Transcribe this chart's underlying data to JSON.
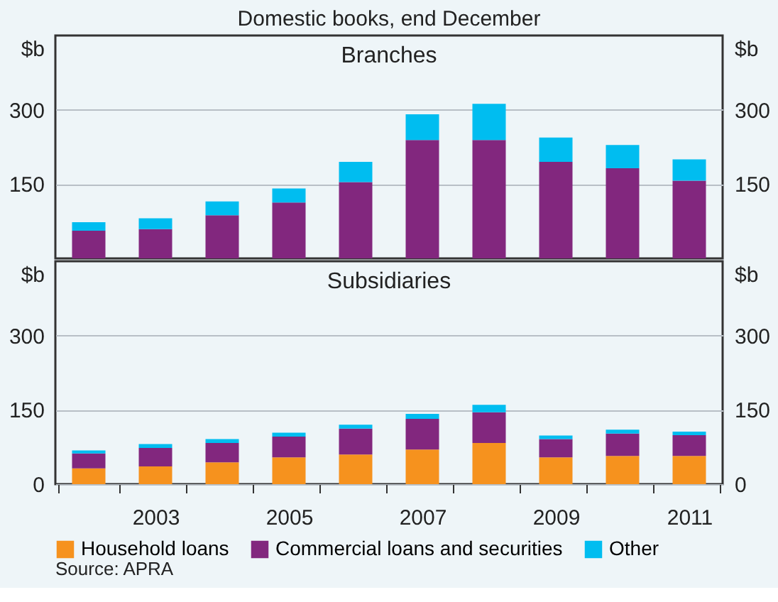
{
  "chart_data": [
    {
      "type": "bar",
      "stacked": true,
      "title": "Branches",
      "annotations": [
        "Domestic books, end December"
      ],
      "ylabel": "$b",
      "y2label": "$b",
      "categories": [
        null,
        "2003",
        null,
        "2005",
        null,
        "2007",
        null,
        "2009",
        null,
        "2011"
      ],
      "series": [
        {
          "color": "#82277e",
          "values": [
            56,
            59,
            87,
            113,
            154,
            239,
            239,
            195,
            182,
            157
          ]
        },
        {
          "color": "#00bdf0",
          "values": [
            17,
            22,
            28,
            28,
            41,
            52,
            73,
            49,
            47,
            43
          ]
        }
      ],
      "ylim": [
        0,
        450
      ],
      "yticks": [
        150,
        300
      ],
      "y2lim": [
        0,
        450
      ],
      "y2ticks": [
        150,
        300
      ],
      "grid": "y",
      "tick_labels": "y"
    },
    {
      "type": "bar",
      "stacked": true,
      "title": "Subsidiaries",
      "annotations": [
        "Source: APRA"
      ],
      "ylabel": "$b",
      "y2label": "$b",
      "categories": [
        null,
        "2003",
        null,
        "2005",
        null,
        "2007",
        null,
        "2009",
        null,
        "2011"
      ],
      "series": [
        {
          "name": "Household loans",
          "color": "#f6921e",
          "values": [
            32,
            36,
            44,
            54,
            60,
            70,
            83,
            54,
            57,
            57
          ]
        },
        {
          "name": "Commercial loans and securities",
          "color": "#82277e",
          "values": [
            30,
            37,
            39,
            42,
            52,
            62,
            62,
            37,
            45,
            42
          ]
        },
        {
          "name": "Other",
          "color": "#00bdf0",
          "values": [
            6,
            8,
            8,
            8,
            8,
            10,
            15,
            7,
            8,
            7
          ]
        }
      ],
      "ylim": [
        0,
        450
      ],
      "yticks": [
        0,
        150,
        300
      ],
      "y2lim": [
        0,
        450
      ],
      "y2ticks": [
        0,
        150,
        300
      ],
      "grid": "y",
      "legend": "bottom"
    }
  ]
}
